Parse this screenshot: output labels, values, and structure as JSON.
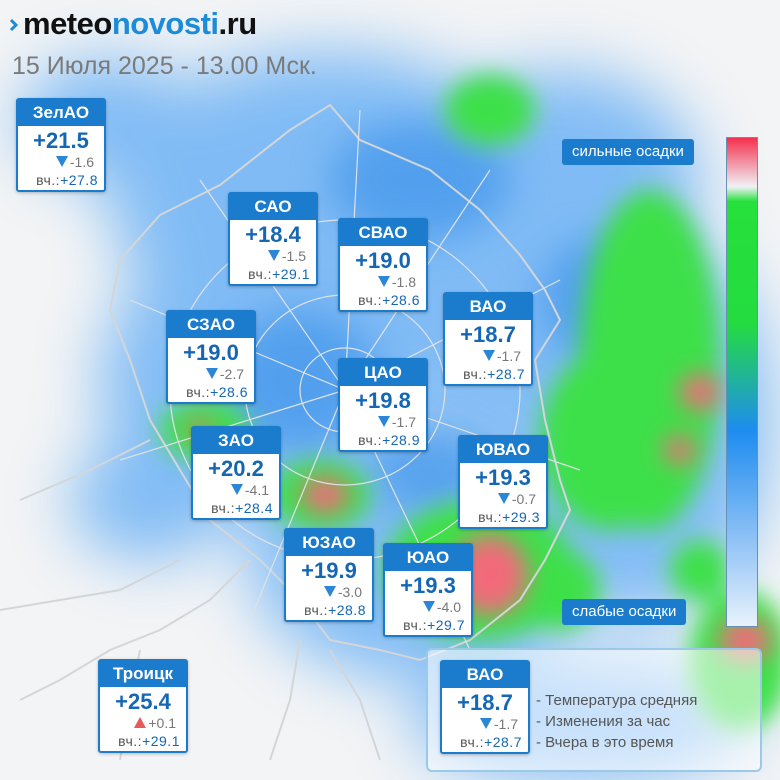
{
  "header": {
    "logo": {
      "part1": "meteo",
      "part2": "novosti",
      "part3": ".ru"
    },
    "date": "15 Июля 2025 - 13.00 Мск."
  },
  "districts": [
    {
      "id": "zelao",
      "name": "ЗелАО",
      "temp": "+21.5",
      "change": "-1.6",
      "trend": "down",
      "yesterday_label": "вч.:",
      "yesterday": "+27.8"
    },
    {
      "id": "sao",
      "name": "САО",
      "temp": "+18.4",
      "change": "-1.5",
      "trend": "down",
      "yesterday_label": "вч.:",
      "yesterday": "+29.1"
    },
    {
      "id": "svao",
      "name": "СВАО",
      "temp": "+19.0",
      "change": "-1.8",
      "trend": "down",
      "yesterday_label": "вч.:",
      "yesterday": "+28.6"
    },
    {
      "id": "vao",
      "name": "ВАО",
      "temp": "+18.7",
      "change": "-1.7",
      "trend": "down",
      "yesterday_label": "вч.:",
      "yesterday": "+28.7"
    },
    {
      "id": "szao",
      "name": "СЗАО",
      "temp": "+19.0",
      "change": "-2.7",
      "trend": "down",
      "yesterday_label": "вч.:",
      "yesterday": "+28.6"
    },
    {
      "id": "cao",
      "name": "ЦАО",
      "temp": "+19.8",
      "change": "-1.7",
      "trend": "down",
      "yesterday_label": "вч.:",
      "yesterday": "+28.9"
    },
    {
      "id": "zao",
      "name": "ЗАО",
      "temp": "+20.2",
      "change": "-4.1",
      "trend": "down",
      "yesterday_label": "вч.:",
      "yesterday": "+28.4"
    },
    {
      "id": "yuvao",
      "name": "ЮВАО",
      "temp": "+19.3",
      "change": "-0.7",
      "trend": "down",
      "yesterday_label": "вч.:",
      "yesterday": "+29.3"
    },
    {
      "id": "yuzao",
      "name": "ЮЗАО",
      "temp": "+19.9",
      "change": "-3.0",
      "trend": "down",
      "yesterday_label": "вч.:",
      "yesterday": "+28.8"
    },
    {
      "id": "yuao",
      "name": "ЮАО",
      "temp": "+19.3",
      "change": "-4.0",
      "trend": "down",
      "yesterday_label": "вч.:",
      "yesterday": "+29.7"
    },
    {
      "id": "troitsk",
      "name": "Троицк",
      "temp": "+25.4",
      "change": "+0.1",
      "trend": "up",
      "yesterday_label": "вч.:",
      "yesterday": "+29.1"
    },
    {
      "id": "legend-sample",
      "name": "ВАО",
      "temp": "+18.7",
      "change": "-1.7",
      "trend": "down",
      "yesterday_label": "вч.:",
      "yesterday": "+28.7"
    }
  ],
  "scale": {
    "heavy_label": "сильные осадки",
    "light_label": "слабые осадки"
  },
  "legend": {
    "items": [
      "- Температура средняя",
      "- Изменения за час",
      "- Вчера в это время"
    ]
  },
  "colors": {
    "accent": "#1b7ccd",
    "temp_text": "#1566b3",
    "precip_light": "#6db2f5",
    "precip_medium": "#3ee04a",
    "precip_heavy": "#f26a7a"
  }
}
